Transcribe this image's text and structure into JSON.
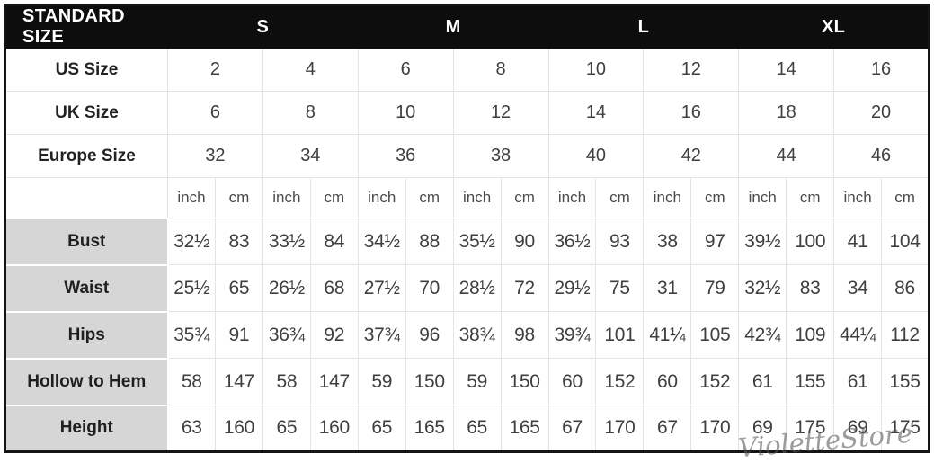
{
  "colors": {
    "header_bg": "#0d0d0d",
    "header_text": "#ffffff",
    "label_bg": "#d6d6d6",
    "grid_line": "#e5e5e5",
    "outer_border": "#141414",
    "value_text": "#3f3f3f"
  },
  "chart_data": {
    "type": "table",
    "title": "STANDARD SIZE",
    "size_groups": [
      "S",
      "M",
      "L",
      "XL"
    ],
    "size_rows": [
      {
        "label": "US Size",
        "values": [
          "2",
          "4",
          "6",
          "8",
          "10",
          "12",
          "14",
          "16"
        ]
      },
      {
        "label": "UK Size",
        "values": [
          "6",
          "8",
          "10",
          "12",
          "14",
          "16",
          "18",
          "20"
        ]
      },
      {
        "label": "Europe Size",
        "values": [
          "32",
          "34",
          "36",
          "38",
          "40",
          "42",
          "44",
          "46"
        ]
      }
    ],
    "units_row": {
      "label": "",
      "values": [
        "inch",
        "cm",
        "inch",
        "cm",
        "inch",
        "cm",
        "inch",
        "cm",
        "inch",
        "cm",
        "inch",
        "cm",
        "inch",
        "cm",
        "inch",
        "cm"
      ]
    },
    "measurement_rows": [
      {
        "label": "Bust",
        "values": [
          "32½",
          "83",
          "33½",
          "84",
          "34½",
          "88",
          "35½",
          "90",
          "36½",
          "93",
          "38",
          "97",
          "39½",
          "100",
          "41",
          "104"
        ]
      },
      {
        "label": "Waist",
        "values": [
          "25½",
          "65",
          "26½",
          "68",
          "27½",
          "70",
          "28½",
          "72",
          "29½",
          "75",
          "31",
          "79",
          "32½",
          "83",
          "34",
          "86"
        ]
      },
      {
        "label": "Hips",
        "values": [
          "35¾",
          "91",
          "36¾",
          "92",
          "37¾",
          "96",
          "38¾",
          "98",
          "39¾",
          "101",
          "41¼",
          "105",
          "42¾",
          "109",
          "44¼",
          "112"
        ]
      },
      {
        "label": "Hollow to Hem",
        "values": [
          "58",
          "147",
          "58",
          "147",
          "59",
          "150",
          "59",
          "150",
          "60",
          "152",
          "60",
          "152",
          "61",
          "155",
          "61",
          "155"
        ]
      },
      {
        "label": "Height",
        "values": [
          "63",
          "160",
          "65",
          "160",
          "65",
          "165",
          "65",
          "165",
          "67",
          "170",
          "67",
          "170",
          "69",
          "175",
          "69",
          "175"
        ]
      }
    ]
  },
  "watermark": {
    "text": "VioletteStore"
  }
}
